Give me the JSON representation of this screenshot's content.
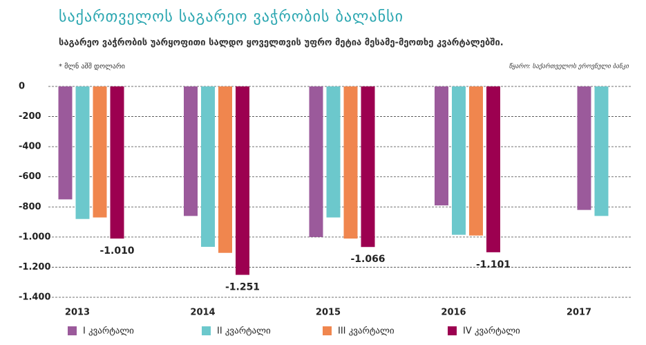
{
  "chart_data": {
    "type": "bar",
    "title": "საქართველოს საგარეო ვაჭრობის ბალანსი",
    "subtitle": "საგარეო ვაჭრობის უარყოფითი სალდო ყოველთვის უფრო მეტია მესამე-მეოთხე კვარტალებში.",
    "unit_note": "* მლნ აშშ დოლარი",
    "source": "წყარო: საქართველოს ეროვნული ბანკი",
    "categories": [
      "2013",
      "2014",
      "2015",
      "2016",
      "2017"
    ],
    "series": [
      {
        "name": "I კვარტალი",
        "color": "#9b5a9b",
        "values": [
          -750,
          -860,
          -1000,
          -790,
          -820
        ]
      },
      {
        "name": "II კვარტალი",
        "color": "#6cc8cc",
        "values": [
          -880,
          -1065,
          -870,
          -985,
          -860
        ]
      },
      {
        "name": "III კვარტალი",
        "color": "#f0864e",
        "values": [
          -870,
          -1105,
          -1010,
          -990,
          null
        ]
      },
      {
        "name": "IV კვარტალი",
        "color": "#9c0050",
        "values": [
          -1010,
          -1251,
          -1066,
          -1101,
          null
        ],
        "value_labels": [
          "-1.010",
          "-1.251",
          "-1.066",
          "-1.101",
          null
        ]
      }
    ],
    "ylim": [
      -1400,
      0
    ],
    "yticks": [
      0,
      -200,
      -400,
      -600,
      -800,
      {
        "value": -1000,
        "label": "-1.000"
      },
      {
        "value": -1200,
        "label": "-1.200"
      },
      {
        "value": -1400,
        "label": "-1.400"
      }
    ],
    "grid": true
  }
}
